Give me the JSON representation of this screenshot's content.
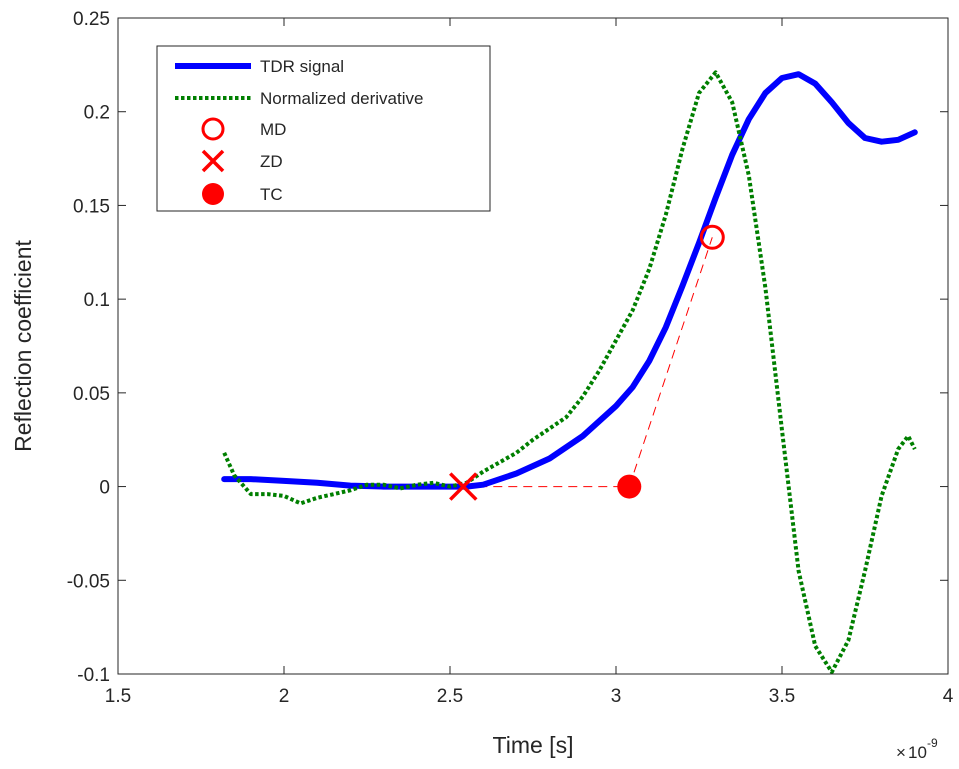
{
  "chart_data": {
    "type": "line",
    "title": "",
    "xlabel": "Time [s]",
    "ylabel": "Reflection coefficient",
    "x_exponent_label": "10",
    "x_exponent_power": "-9",
    "x_tick_labels": [
      "1.5",
      "2",
      "2.5",
      "3",
      "3.5",
      "4"
    ],
    "y_tick_labels": [
      "-0.1",
      "-0.05",
      "0",
      "0.05",
      "0.1",
      "0.15",
      "0.2",
      "0.25"
    ],
    "xlim": [
      1.5e-09,
      4e-09
    ],
    "ylim": [
      -0.1,
      0.25
    ],
    "x_ticks": [
      1.5e-09,
      2e-09,
      2.5e-09,
      3e-09,
      3.5e-09,
      4e-09
    ],
    "y_ticks": [
      -0.1,
      -0.05,
      0,
      0.05,
      0.1,
      0.15,
      0.2,
      0.25
    ],
    "grid": false,
    "box": true,
    "legend_position": "top-left",
    "series": [
      {
        "name": "TDR signal",
        "style": "solid",
        "color": "#0000ff",
        "x": [
          1.82e-09,
          1.9e-09,
          2e-09,
          2.1e-09,
          2.2e-09,
          2.3e-09,
          2.4e-09,
          2.5e-09,
          2.55e-09,
          2.6e-09,
          2.7e-09,
          2.8e-09,
          2.9e-09,
          3e-09,
          3.05e-09,
          3.1e-09,
          3.15e-09,
          3.2e-09,
          3.25e-09,
          3.3e-09,
          3.35e-09,
          3.4e-09,
          3.45e-09,
          3.5e-09,
          3.55e-09,
          3.6e-09,
          3.65e-09,
          3.7e-09,
          3.75e-09,
          3.8e-09,
          3.85e-09,
          3.9e-09
        ],
        "y": [
          0.004,
          0.004,
          0.003,
          0.002,
          0.0005,
          0.0,
          0.0,
          0.0,
          0.0,
          0.001,
          0.007,
          0.015,
          0.027,
          0.043,
          0.053,
          0.067,
          0.085,
          0.107,
          0.13,
          0.154,
          0.177,
          0.196,
          0.21,
          0.218,
          0.22,
          0.215,
          0.205,
          0.194,
          0.186,
          0.184,
          0.185,
          0.189
        ]
      },
      {
        "name": "Normalized derivative",
        "style": "dotted",
        "color": "#007f00",
        "x": [
          1.82e-09,
          1.85e-09,
          1.9e-09,
          1.95e-09,
          2e-09,
          2.05e-09,
          2.1e-09,
          2.15e-09,
          2.2e-09,
          2.25e-09,
          2.3e-09,
          2.35e-09,
          2.4e-09,
          2.45e-09,
          2.5e-09,
          2.55e-09,
          2.6e-09,
          2.65e-09,
          2.7e-09,
          2.75e-09,
          2.8e-09,
          2.85e-09,
          2.9e-09,
          2.95e-09,
          3e-09,
          3.05e-09,
          3.1e-09,
          3.15e-09,
          3.2e-09,
          3.25e-09,
          3.3e-09,
          3.35e-09,
          3.4e-09,
          3.45e-09,
          3.5e-09,
          3.55e-09,
          3.6e-09,
          3.65e-09,
          3.7e-09,
          3.75e-09,
          3.8e-09,
          3.85e-09,
          3.88e-09,
          3.9e-09
        ],
        "y": [
          0.018,
          0.006,
          -0.004,
          -0.004,
          -0.005,
          -0.009,
          -0.006,
          -0.004,
          -0.002,
          0.001,
          0.001,
          -0.001,
          0.001,
          0.002,
          0.0,
          0.002,
          0.008,
          0.013,
          0.018,
          0.025,
          0.031,
          0.037,
          0.048,
          0.062,
          0.078,
          0.094,
          0.116,
          0.145,
          0.18,
          0.21,
          0.221,
          0.205,
          0.166,
          0.106,
          0.03,
          -0.045,
          -0.085,
          -0.099,
          -0.082,
          -0.045,
          -0.005,
          0.02,
          0.027,
          0.02
        ]
      }
    ],
    "markers": [
      {
        "name": "MD",
        "shape": "circle-open",
        "color": "#ff0000",
        "x": 3.29e-09,
        "y": 0.133
      },
      {
        "name": "ZD",
        "shape": "cross",
        "color": "#ff0000",
        "x": 2.54e-09,
        "y": 0.0
      },
      {
        "name": "TC",
        "shape": "circle-filled",
        "color": "#ff0000",
        "x": 3.04e-09,
        "y": 0.0
      }
    ],
    "construction_lines": [
      {
        "style": "dashed",
        "color": "#ff0000",
        "x": [
          2.54e-09,
          3.04e-09
        ],
        "y": [
          0.0,
          0.0
        ]
      },
      {
        "style": "dashed",
        "color": "#ff0000",
        "x": [
          3.04e-09,
          3.29e-09
        ],
        "y": [
          0.0,
          0.133
        ]
      }
    ]
  }
}
